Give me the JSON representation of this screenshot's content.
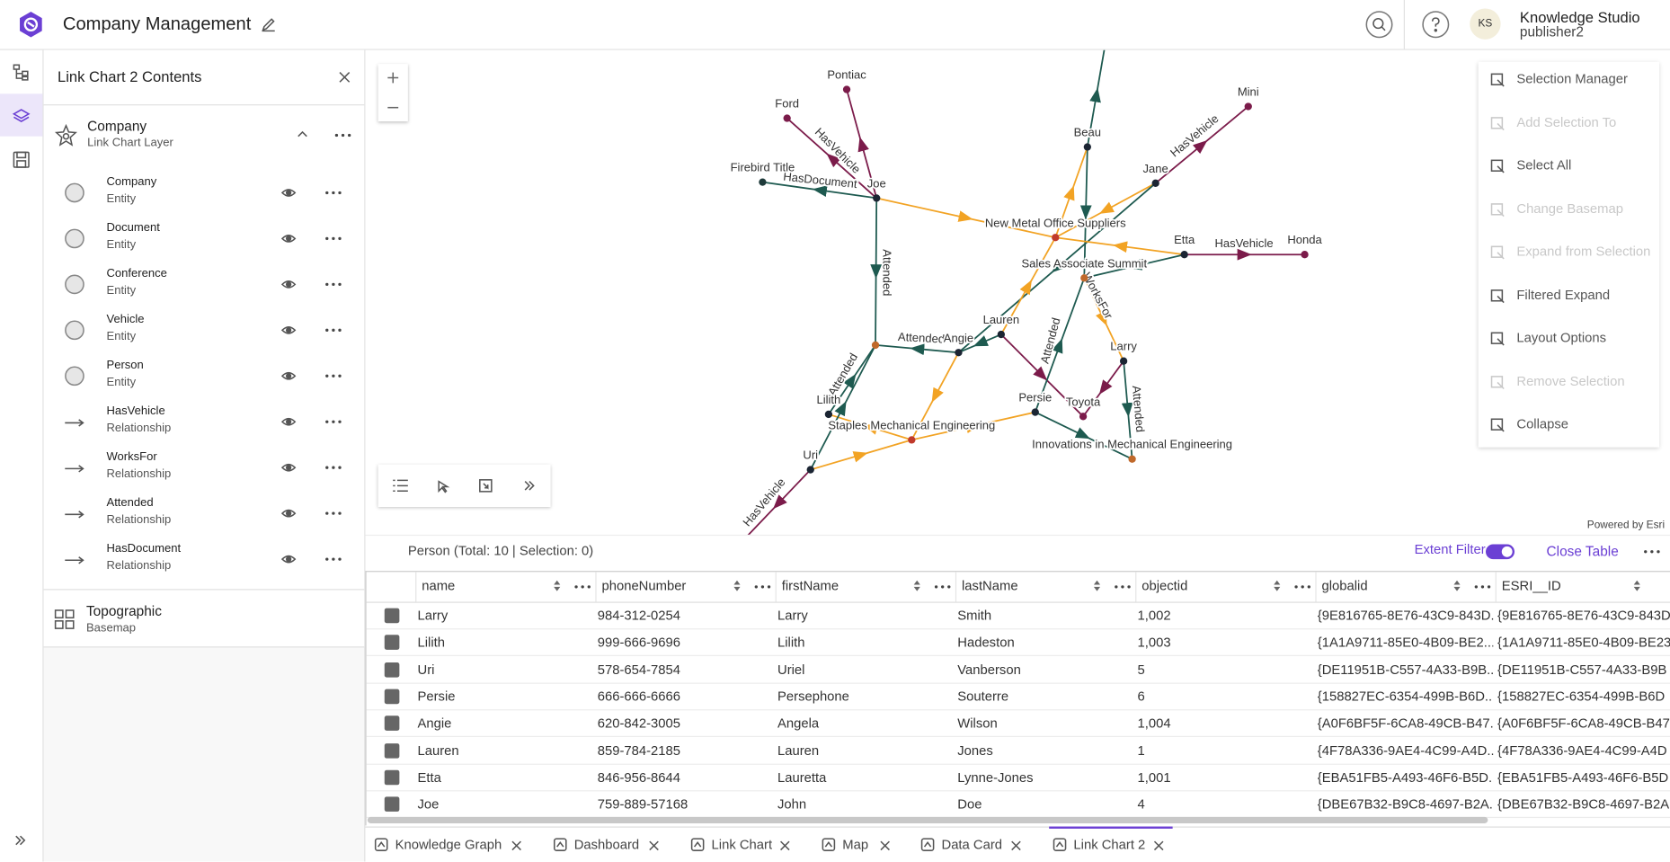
{
  "header": {
    "title": "Company Management",
    "avatar": "KS",
    "user_name": "Knowledge Studio",
    "user_role": "publisher2"
  },
  "contents_panel": {
    "title": "Link Chart 2 Contents",
    "layer": {
      "name": "Company",
      "type": "Link Chart Layer",
      "items": [
        {
          "name": "Company",
          "type": "Entity"
        },
        {
          "name": "Document",
          "type": "Entity"
        },
        {
          "name": "Conference",
          "type": "Entity"
        },
        {
          "name": "Vehicle",
          "type": "Entity"
        },
        {
          "name": "Person",
          "type": "Entity"
        },
        {
          "name": "HasVehicle",
          "type": "Relationship"
        },
        {
          "name": "WorksFor",
          "type": "Relationship"
        },
        {
          "name": "Attended",
          "type": "Relationship"
        },
        {
          "name": "HasDocument",
          "type": "Relationship"
        }
      ]
    },
    "basemap": {
      "name": "Topographic",
      "type": "Basemap"
    }
  },
  "map": {
    "nodes": [
      "Pontiac",
      "Ford",
      "Firebird Title",
      "Joe",
      "Beau",
      "Mini",
      "Jane",
      "New Metal Office Suppliers",
      "Etta",
      "Honda",
      "Sales Associate Summit",
      "Lauren",
      "Angie",
      "Larry",
      "Lilith",
      "Persie",
      "Toyota",
      "Staples Mechanical Engineering",
      "Innovations in Mechanical Engineering",
      "Uri"
    ],
    "edge_labels": [
      "HasVehicle",
      "HasDocument",
      "Attended",
      "HasVehicle",
      "HasVehicle",
      "WorksFor",
      "Attended",
      "Attended",
      "Attended",
      "Attended",
      "HasVehicle"
    ],
    "attribution": "Powered by Esri",
    "menu": [
      {
        "label": "Selection Manager",
        "enabled": true
      },
      {
        "label": "Add Selection To",
        "enabled": false
      },
      {
        "label": "Select All",
        "enabled": true
      },
      {
        "label": "Change Basemap",
        "enabled": false
      },
      {
        "label": "Expand from Selection",
        "enabled": false
      },
      {
        "label": "Filtered Expand",
        "enabled": true
      },
      {
        "label": "Layout Options",
        "enabled": true
      },
      {
        "label": "Remove Selection",
        "enabled": false
      },
      {
        "label": "Collapse",
        "enabled": true
      }
    ]
  },
  "table": {
    "summary": "Person (Total: 10 | Selection: 0)",
    "extent_filter": "Extent Filter",
    "close": "Close Table",
    "columns": [
      "name",
      "phoneNumber",
      "firstName",
      "lastName",
      "objectid",
      "globalid",
      "ESRI__ID"
    ],
    "rows": [
      [
        "Larry",
        "984-312-0254",
        "Larry",
        "Smith",
        "1,002",
        "{9E816765-8E76-43C9-843D...",
        "{9E816765-8E76-43C9-843D"
      ],
      [
        "Lilith",
        "999-666-9696",
        "Lilith",
        "Hadeston",
        "1,003",
        "{1A1A9711-85E0-4B09-BE2...",
        "{1A1A9711-85E0-4B09-BE23"
      ],
      [
        "Uri",
        "578-654-7854",
        "Uriel",
        "Vanberson",
        "5",
        "{DE11951B-C557-4A33-B9B...",
        "{DE11951B-C557-4A33-B9B"
      ],
      [
        "Persie",
        "666-666-6666",
        "Persephone",
        "Souterre",
        "6",
        "{158827EC-6354-499B-B6D...",
        "{158827EC-6354-499B-B6D"
      ],
      [
        "Angie",
        "620-842-3005",
        "Angela",
        "Wilson",
        "1,004",
        "{A0F6BF5F-6CA8-49CB-B47...",
        "{A0F6BF5F-6CA8-49CB-B47"
      ],
      [
        "Lauren",
        "859-784-2185",
        "Lauren",
        "Jones",
        "1",
        "{4F78A336-9AE4-4C99-A4D...",
        "{4F78A336-9AE4-4C99-A4D"
      ],
      [
        "Etta",
        "846-956-8644",
        "Lauretta",
        "Lynne-Jones",
        "1,001",
        "{EBA51FB5-A493-46F6-B5D...",
        "{EBA51FB5-A493-46F6-B5D"
      ],
      [
        "Joe",
        "759-889-57168",
        "John",
        "Doe",
        "4",
        "{DBE67B32-B9C8-4697-B2A...",
        "{DBE67B32-B9C8-4697-B2A"
      ]
    ]
  },
  "tabs": [
    "Knowledge Graph",
    "Dashboard",
    "Link Chart",
    "Map",
    "Data Card",
    "Link Chart 2"
  ]
}
